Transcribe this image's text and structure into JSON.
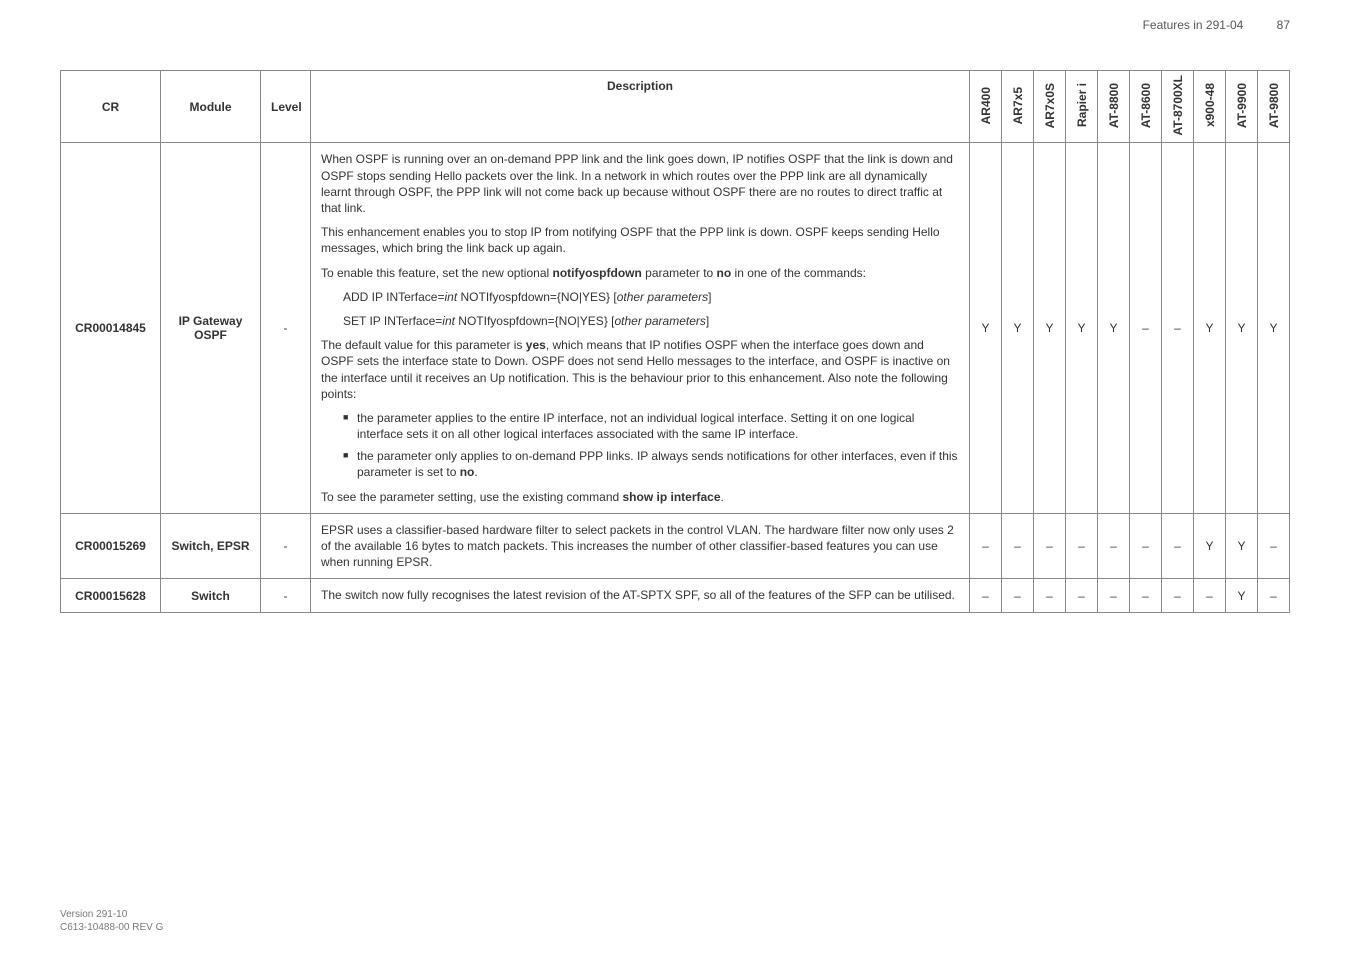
{
  "header": {
    "doc_title": "Features in 291-04",
    "page_number": "87"
  },
  "columns": {
    "cr": "CR",
    "module": "Module",
    "level": "Level",
    "description": "Description",
    "flags": [
      "AR400",
      "AR7x5",
      "AR7x0S",
      "Rapier i",
      "AT-8800",
      "AT-8600",
      "AT-8700XL",
      "x900-48",
      "AT-9900",
      "AT-9800"
    ]
  },
  "rows": [
    {
      "cr": "CR00014845",
      "module": "IP Gateway OSPF",
      "level": "-",
      "flags": [
        "Y",
        "Y",
        "Y",
        "Y",
        "Y",
        "–",
        "–",
        "Y",
        "Y",
        "Y"
      ],
      "desc": {
        "p1": "When OSPF is running over an on-demand PPP link and the link goes down, IP notifies OSPF that the link is down and OSPF stops sending Hello packets over the link. In a network in which routes over the PPP link are all dynamically learnt through OSPF, the PPP link will not come back up because without OSPF there are no routes to direct traffic at that link.",
        "p2": "This enhancement enables you to stop IP from notifying OSPF that the PPP link is down. OSPF keeps sending Hello messages, which bring the link back up again.",
        "p3a": "To enable this feature, set the new optional ",
        "p3b": "notifyospfdown",
        "p3c": " parameter to ",
        "p3d": "no",
        "p3e": " in one of the commands:",
        "cmd1a": "ADD IP INTerface=",
        "cmd1b": "int",
        "cmd1c": " NOTIfyospfdown={NO|YES}  [",
        "cmd1d": "other parameters",
        "cmd1e": "]",
        "cmd2a": "SET IP INTerface=",
        "cmd2b": "int",
        "cmd2c": " NOTIfyospfdown={NO|YES}  [",
        "cmd2d": "other parameters",
        "cmd2e": "]",
        "p4a": "The default value for this parameter is ",
        "p4b": "yes",
        "p4c": ", which means that IP notifies OSPF when the interface goes down and OSPF sets the interface state to Down. OSPF does not send Hello messages to the interface, and OSPF is inactive on the interface until it receives an Up notification. This is the behaviour prior to this enhancement. Also note the following points:",
        "li1": "the parameter applies to the entire IP interface, not an individual logical interface. Setting it on one logical interface sets it on all other logical interfaces associated with the same IP interface.",
        "li2a": "the parameter only applies to on-demand PPP links. IP always sends notifications for other interfaces, even if this parameter is set to ",
        "li2b": "no",
        "li2c": ".",
        "p5a": "To see the parameter setting, use the existing command ",
        "p5b": "show ip interface",
        "p5c": "."
      }
    },
    {
      "cr": "CR00015269",
      "module": "Switch, EPSR",
      "level": "-",
      "flags": [
        "–",
        "–",
        "–",
        "–",
        "–",
        "–",
        "–",
        "Y",
        "Y",
        "–"
      ],
      "desc": {
        "p1": "EPSR uses a classifier-based hardware filter to select packets in the control VLAN. The hardware filter now only uses 2 of the available 16 bytes to match packets. This increases the number of other classifier-based features you can use when running EPSR."
      }
    },
    {
      "cr": "CR00015628",
      "module": "Switch",
      "level": "-",
      "flags": [
        "–",
        "–",
        "–",
        "–",
        "–",
        "–",
        "–",
        "–",
        "Y",
        "–"
      ],
      "desc": {
        "p1": "The switch now fully recognises the latest revision of the AT-SPTX SPF, so all of the features of the SFP can be utilised."
      }
    }
  ],
  "footer": {
    "line1": "Version 291-10",
    "line2": "C613-10488-00 REV G"
  }
}
